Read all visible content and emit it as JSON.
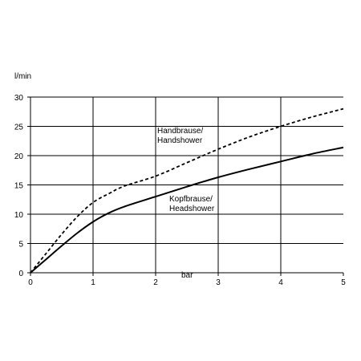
{
  "chart_data": {
    "type": "line",
    "xlabel": "bar",
    "ylabel": "l/min",
    "xlim": [
      0,
      5
    ],
    "ylim": [
      0,
      30
    ],
    "xticks": [
      "0",
      "1",
      "2",
      "3",
      "4",
      "5"
    ],
    "yticks": [
      "0",
      "5",
      "10",
      "15",
      "20",
      "25",
      "30"
    ],
    "grid": true,
    "series": [
      {
        "name": "Handbrause/ Handshower",
        "label_lines": [
          "Handbrause/",
          "Handshower"
        ],
        "style": "dashed",
        "color": "#000000",
        "x": [
          0,
          0.25,
          0.5,
          0.75,
          1.0,
          1.25,
          1.5,
          2.0,
          2.5,
          3.0,
          3.5,
          4.0,
          4.5,
          5.0
        ],
        "y": [
          0,
          3.3,
          6.6,
          9.6,
          12.0,
          13.5,
          14.8,
          16.5,
          18.8,
          21.1,
          23.2,
          25.0,
          26.6,
          28.0
        ]
      },
      {
        "name": "Kopfbrause/ Headshower",
        "label_lines": [
          "Kopfbrause/",
          "Headshower"
        ],
        "style": "solid",
        "color": "#000000",
        "x": [
          0,
          0.25,
          0.5,
          0.75,
          1.0,
          1.25,
          1.5,
          2.0,
          2.5,
          3.0,
          3.5,
          4.0,
          4.5,
          5.0
        ],
        "y": [
          0,
          2.3,
          4.6,
          6.8,
          8.7,
          10.2,
          11.3,
          13.0,
          14.7,
          16.3,
          17.7,
          19.0,
          20.3,
          21.4
        ]
      }
    ]
  }
}
